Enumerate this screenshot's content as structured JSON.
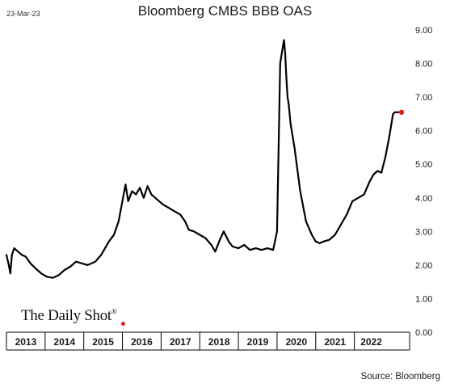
{
  "header": {
    "date": "23-Mar-23"
  },
  "brand": {
    "name": "The Daily Shot",
    "mark": "®"
  },
  "source": "Source: Bloomberg",
  "colors": {
    "line": "#000000",
    "last_point": "#e0201b",
    "grid": "#d9d9d9"
  },
  "chart_data": {
    "type": "line",
    "title": "Bloomberg CMBS BBB OAS",
    "xlabel": "",
    "ylabel": "",
    "ylim": [
      0,
      9
    ],
    "y_ticks": [
      "0.00",
      "1.00",
      "2.00",
      "3.00",
      "4.00",
      "5.00",
      "6.00",
      "7.00",
      "8.00",
      "9.00"
    ],
    "x_ticks": [
      "2013",
      "2014",
      "2015",
      "2016",
      "2017",
      "2018",
      "2019",
      "2020",
      "2021",
      "2022"
    ],
    "xlim": [
      2013.0,
      2023.22
    ],
    "grid": false,
    "legend": "none",
    "series": [
      {
        "x": [
          2013.0,
          2013.06,
          2013.1,
          2013.14,
          2013.2,
          2013.3,
          2013.4,
          2013.5,
          2013.62,
          2013.75,
          2013.9,
          2014.05,
          2014.2,
          2014.35,
          2014.5,
          2014.65,
          2014.8,
          2014.95,
          2015.1,
          2015.3,
          2015.45,
          2015.55,
          2015.65,
          2015.78,
          2015.9,
          2016.0,
          2016.08,
          2016.15,
          2016.25,
          2016.35,
          2016.45,
          2016.55,
          2016.65,
          2016.75,
          2016.85,
          2016.95,
          2017.05,
          2017.2,
          2017.35,
          2017.5,
          2017.62,
          2017.72,
          2017.85,
          2018.0,
          2018.15,
          2018.3,
          2018.4,
          2018.52,
          2018.62,
          2018.75,
          2018.85,
          2019.0,
          2019.15,
          2019.3,
          2019.45,
          2019.6,
          2019.75,
          2019.9,
          2020.0,
          2020.08,
          2020.15,
          2020.18,
          2020.21,
          2020.24,
          2020.27,
          2020.3,
          2020.35,
          2020.45,
          2020.6,
          2020.75,
          2020.9,
          2021.0,
          2021.1,
          2021.2,
          2021.35,
          2021.5,
          2021.65,
          2021.8,
          2021.95,
          2022.1,
          2022.25,
          2022.4,
          2022.5,
          2022.6,
          2022.7,
          2022.8,
          2022.9,
          2023.0,
          2023.05,
          2023.1,
          2023.15,
          2023.18,
          2023.22
        ],
        "values": [
          2.3,
          2.0,
          1.75,
          2.3,
          2.5,
          2.4,
          2.3,
          2.25,
          2.05,
          1.9,
          1.75,
          1.65,
          1.62,
          1.7,
          1.85,
          1.95,
          2.1,
          2.05,
          2.0,
          2.1,
          2.3,
          2.5,
          2.7,
          2.9,
          3.3,
          3.9,
          4.4,
          3.9,
          4.2,
          4.1,
          4.3,
          4.0,
          4.35,
          4.1,
          4.0,
          3.9,
          3.8,
          3.7,
          3.6,
          3.5,
          3.3,
          3.05,
          3.0,
          2.9,
          2.8,
          2.6,
          2.4,
          2.75,
          3.0,
          2.7,
          2.55,
          2.5,
          2.6,
          2.45,
          2.5,
          2.45,
          2.5,
          2.45,
          3.0,
          8.0,
          8.5,
          8.7,
          8.3,
          7.6,
          7.0,
          6.8,
          6.2,
          5.5,
          4.2,
          3.3,
          2.9,
          2.7,
          2.65,
          2.7,
          2.75,
          2.9,
          3.2,
          3.5,
          3.9,
          4.0,
          4.1,
          4.5,
          4.7,
          4.8,
          4.75,
          5.2,
          5.8,
          6.5,
          6.55,
          6.55,
          6.55,
          6.55,
          6.55
        ]
      }
    ]
  }
}
